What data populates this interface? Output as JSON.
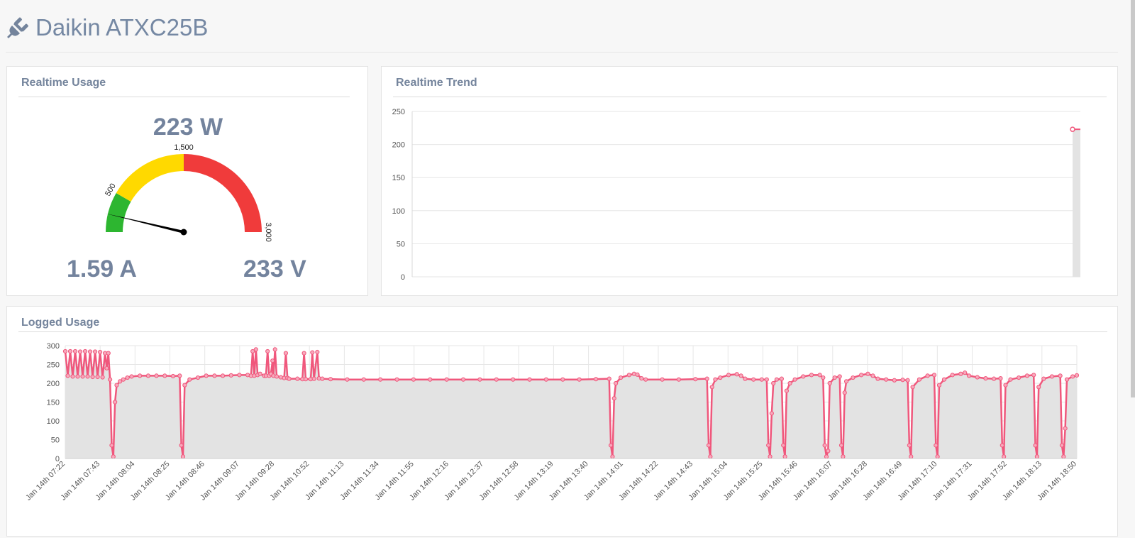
{
  "page": {
    "title": "Daikin ATXC25B",
    "icon": "plug-icon"
  },
  "usage_panel": {
    "title": "Realtime Usage",
    "power": "223 W",
    "current": "1.59 A",
    "voltage": "233 V",
    "gauge": {
      "min": 0,
      "max": 3000,
      "value": 223,
      "ticks": [
        "500",
        "1,500",
        "3,000"
      ],
      "bands": [
        {
          "from": 0,
          "to": 500,
          "color": "#2db630"
        },
        {
          "from": 500,
          "to": 1500,
          "color": "#ffd900"
        },
        {
          "from": 1500,
          "to": 3000,
          "color": "#f03b3b"
        }
      ]
    }
  },
  "trend_panel": {
    "title": "Realtime Trend"
  },
  "logged_panel": {
    "title": "Logged Usage"
  },
  "colors": {
    "line": "#f0577c",
    "fill": "#e3e3e3",
    "grid": "#e6e6e6",
    "accent": "#74849c"
  },
  "chart_data": [
    {
      "type": "line",
      "title": "Realtime Trend",
      "ylim": [
        0,
        250
      ],
      "yticks": [
        0,
        50,
        100,
        150,
        200,
        250
      ],
      "y": [
        223
      ],
      "grid": true
    },
    {
      "type": "area",
      "title": "Logged Usage",
      "ylim": [
        0,
        300
      ],
      "yticks": [
        0,
        50,
        100,
        150,
        200,
        250,
        300
      ],
      "grid": true,
      "x_tick_labels": [
        "Jan 14th 07:22",
        "Jan 14th 07:43",
        "Jan 14th 08:04",
        "Jan 14th 08:25",
        "Jan 14th 08:46",
        "Jan 14th 09:07",
        "Jan 14th 09:28",
        "Jan 14th 10:52",
        "Jan 14th 11:13",
        "Jan 14th 11:34",
        "Jan 14th 11:55",
        "Jan 14th 12:16",
        "Jan 14th 12:37",
        "Jan 14th 12:58",
        "Jan 14th 13:19",
        "Jan 14th 13:40",
        "Jan 14th 14:01",
        "Jan 14th 14:22",
        "Jan 14th 14:43",
        "Jan 14th 15:04",
        "Jan 14th 15:25",
        "Jan 14th 15:46",
        "Jan 14th 16:07",
        "Jan 14th 16:28",
        "Jan 14th 16:49",
        "Jan 14th 17:10",
        "Jan 14th 17:31",
        "Jan 14th 17:52",
        "Jan 14th 18:13",
        "Jan 14th 18:50"
      ],
      "points": [
        [
          0,
          285
        ],
        [
          0.3,
          220
        ],
        [
          0.6,
          285
        ],
        [
          0.9,
          218
        ],
        [
          1.2,
          285
        ],
        [
          1.5,
          218
        ],
        [
          1.8,
          284
        ],
        [
          2.1,
          218
        ],
        [
          2.4,
          285
        ],
        [
          2.7,
          218
        ],
        [
          3.0,
          284
        ],
        [
          3.3,
          217
        ],
        [
          3.6,
          284
        ],
        [
          3.9,
          217
        ],
        [
          4.2,
          283
        ],
        [
          4.5,
          216
        ],
        [
          4.8,
          280
        ],
        [
          5.0,
          240
        ],
        [
          5.2,
          280
        ],
        [
          5.4,
          210
        ],
        [
          5.6,
          35
        ],
        [
          5.8,
          5
        ],
        [
          6.0,
          150
        ],
        [
          6.2,
          195
        ],
        [
          6.6,
          205
        ],
        [
          7.0,
          210
        ],
        [
          7.5,
          215
        ],
        [
          8,
          218
        ],
        [
          9,
          220
        ],
        [
          10,
          220
        ],
        [
          11,
          220
        ],
        [
          12,
          220
        ],
        [
          13,
          219
        ],
        [
          13.8,
          220
        ],
        [
          14.0,
          35
        ],
        [
          14.2,
          5
        ],
        [
          14.4,
          195
        ],
        [
          15,
          210
        ],
        [
          16,
          215
        ],
        [
          17,
          220
        ],
        [
          18,
          220
        ],
        [
          19,
          220
        ],
        [
          20,
          221
        ],
        [
          21,
          222
        ],
        [
          22,
          222
        ],
        [
          22.4,
          220
        ],
        [
          22.6,
          285
        ],
        [
          22.8,
          220
        ],
        [
          23.0,
          290
        ],
        [
          23.2,
          222
        ],
        [
          23.5,
          225
        ],
        [
          24,
          220
        ],
        [
          24.2,
          220
        ],
        [
          24.4,
          285
        ],
        [
          24.6,
          220
        ],
        [
          24.8,
          225
        ],
        [
          25.0,
          260
        ],
        [
          25.1,
          220
        ],
        [
          25.3,
          290
        ],
        [
          25.5,
          218
        ],
        [
          26,
          216
        ],
        [
          26.4,
          214
        ],
        [
          26.6,
          280
        ],
        [
          26.8,
          214
        ],
        [
          27,
          212
        ],
        [
          28,
          212
        ],
        [
          28.6,
          211
        ],
        [
          28.8,
          280
        ],
        [
          29.0,
          211
        ],
        [
          29.6,
          211
        ],
        [
          29.8,
          282
        ],
        [
          30.0,
          212
        ],
        [
          30.4,
          283
        ],
        [
          30.6,
          213
        ],
        [
          31,
          212
        ],
        [
          32,
          211
        ],
        [
          34,
          210
        ],
        [
          36,
          210
        ],
        [
          38,
          210
        ],
        [
          40,
          210
        ],
        [
          42,
          210
        ],
        [
          44,
          210
        ],
        [
          46,
          210
        ],
        [
          48,
          210
        ],
        [
          50,
          210
        ],
        [
          52,
          210
        ],
        [
          54,
          210
        ],
        [
          56,
          210
        ],
        [
          58,
          210
        ],
        [
          60,
          210
        ],
        [
          62,
          210
        ],
        [
          64,
          211
        ],
        [
          65.6,
          212
        ],
        [
          65.8,
          35
        ],
        [
          66.0,
          5
        ],
        [
          66.2,
          160
        ],
        [
          66.4,
          200
        ],
        [
          67,
          215
        ],
        [
          68,
          222
        ],
        [
          68.6,
          225
        ],
        [
          69,
          223
        ],
        [
          69.5,
          213
        ],
        [
          70,
          210
        ],
        [
          72,
          210
        ],
        [
          74,
          210
        ],
        [
          76,
          211
        ],
        [
          77.4,
          212
        ],
        [
          77.6,
          35
        ],
        [
          77.8,
          5
        ],
        [
          78.0,
          190
        ],
        [
          78.4,
          210
        ],
        [
          79,
          215
        ],
        [
          80,
          222
        ],
        [
          81,
          224
        ],
        [
          81.5,
          220
        ],
        [
          82,
          212
        ],
        [
          83,
          210
        ],
        [
          84,
          210
        ],
        [
          84.6,
          210
        ],
        [
          84.8,
          35
        ],
        [
          85.0,
          5
        ],
        [
          85.2,
          120
        ],
        [
          85.4,
          200
        ],
        [
          85.8,
          210
        ],
        [
          86.4,
          212
        ],
        [
          86.6,
          35
        ],
        [
          86.8,
          5
        ],
        [
          87.0,
          180
        ],
        [
          87.4,
          200
        ],
        [
          88,
          210
        ],
        [
          89,
          218
        ],
        [
          90,
          222
        ],
        [
          91,
          222
        ],
        [
          91.4,
          215
        ],
        [
          91.6,
          35
        ],
        [
          91.8,
          5
        ],
        [
          92.0,
          20
        ],
        [
          92.2,
          200
        ],
        [
          92.8,
          215
        ],
        [
          93.4,
          218
        ],
        [
          93.6,
          35
        ],
        [
          93.8,
          5
        ],
        [
          94.0,
          175
        ],
        [
          94.2,
          205
        ],
        [
          95,
          215
        ],
        [
          96,
          222
        ],
        [
          96.8,
          225
        ],
        [
          97.4,
          220
        ],
        [
          98,
          212
        ],
        [
          99,
          210
        ],
        [
          100,
          208
        ],
        [
          101,
          209
        ],
        [
          101.6,
          208
        ],
        [
          101.8,
          35
        ],
        [
          102.0,
          5
        ],
        [
          102.2,
          190
        ],
        [
          103,
          210
        ],
        [
          104,
          220
        ],
        [
          104.8,
          222
        ],
        [
          105.0,
          35
        ],
        [
          105.2,
          5
        ],
        [
          105.4,
          195
        ],
        [
          106,
          210
        ],
        [
          107,
          222
        ],
        [
          108,
          225
        ],
        [
          108.5,
          228
        ],
        [
          109,
          220
        ],
        [
          110,
          216
        ],
        [
          111,
          213
        ],
        [
          112,
          212
        ],
        [
          112.8,
          213
        ],
        [
          113.0,
          35
        ],
        [
          113.2,
          5
        ],
        [
          113.4,
          195
        ],
        [
          114,
          210
        ],
        [
          115,
          215
        ],
        [
          116,
          220
        ],
        [
          116.8,
          222
        ],
        [
          117.0,
          35
        ],
        [
          117.2,
          5
        ],
        [
          117.4,
          190
        ],
        [
          118,
          212
        ],
        [
          119,
          218
        ],
        [
          120,
          220
        ],
        [
          120.2,
          35
        ],
        [
          120.4,
          5
        ],
        [
          120.6,
          80
        ],
        [
          120.8,
          210
        ],
        [
          121.5,
          218
        ],
        [
          122,
          221
        ]
      ],
      "x_range": [
        0,
        122
      ]
    }
  ]
}
